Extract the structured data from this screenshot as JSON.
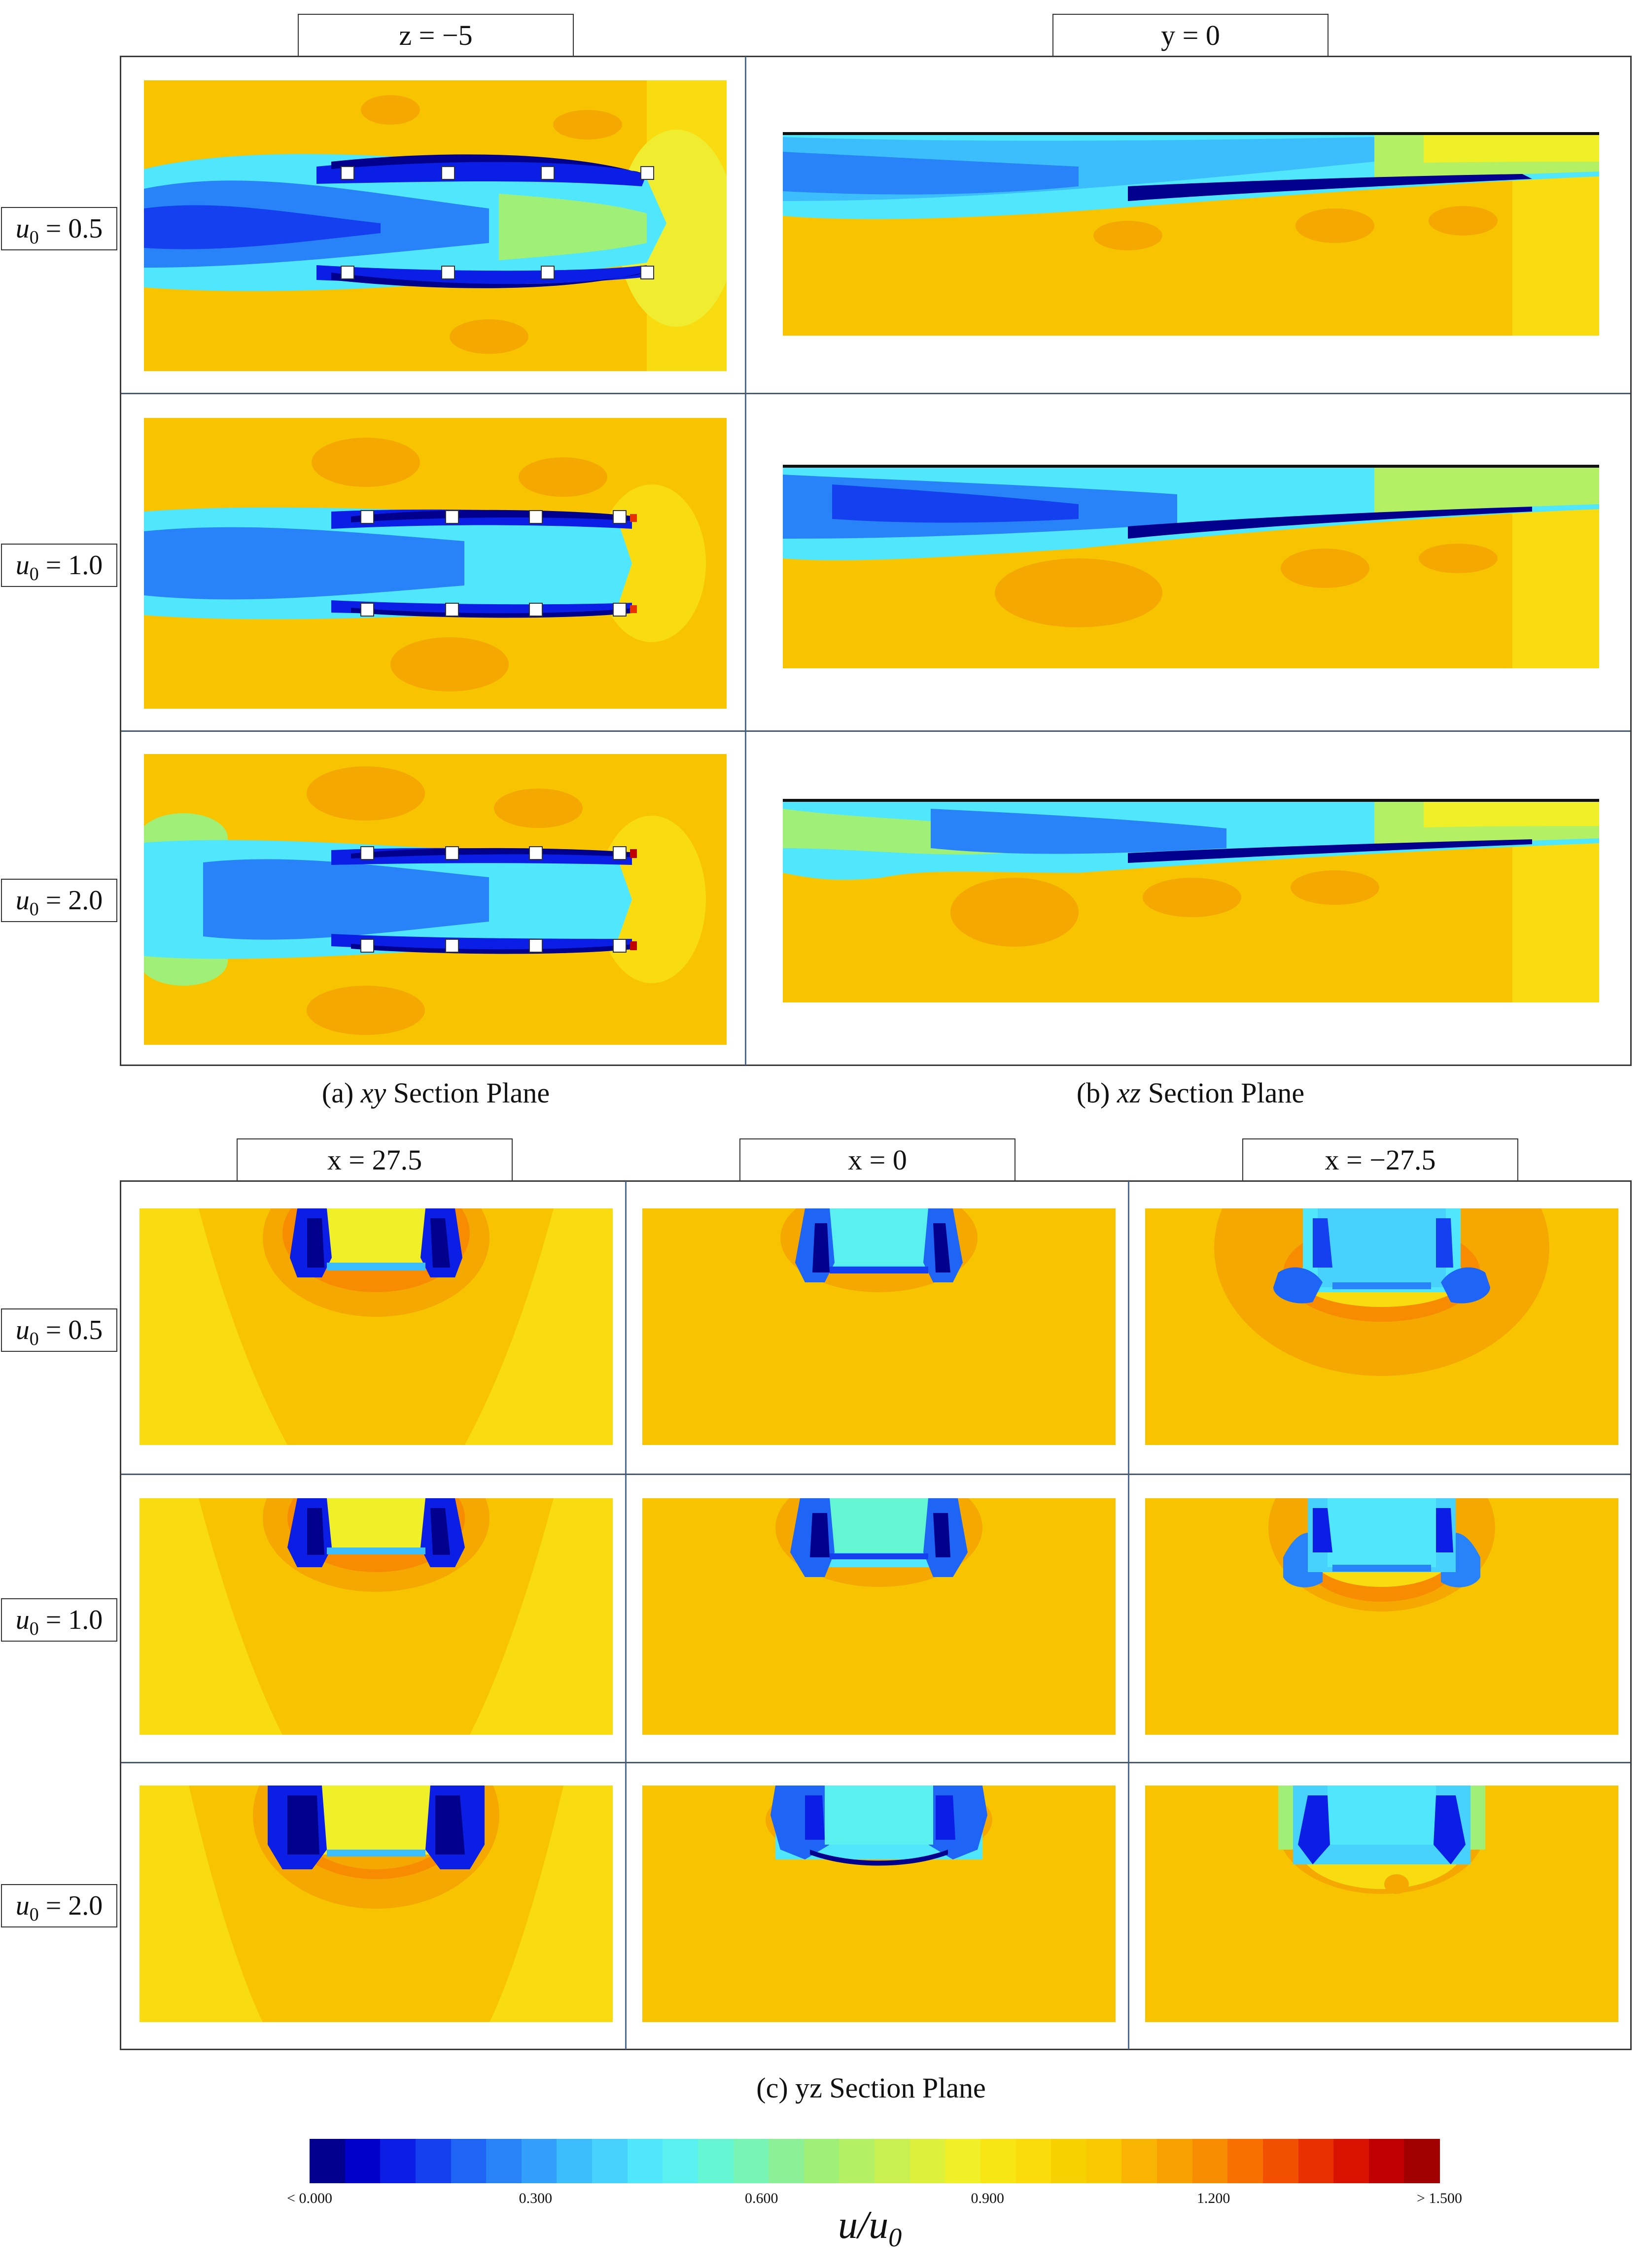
{
  "section_a": {
    "header": "z = −5",
    "caption_italic": "xy",
    "caption_prefix": "(a) ",
    "caption_suffix": " Section Plane"
  },
  "section_b": {
    "header": "y = 0",
    "caption_italic": "xz",
    "caption_prefix": "(b) ",
    "caption_suffix": " Section Plane"
  },
  "section_c": {
    "headers": [
      "x = 27.5",
      "x = 0",
      "x = −27.5"
    ],
    "caption": "(c) yz Section Plane"
  },
  "rows_top": [
    {
      "var": "u",
      "sub": "0",
      "value": " = 0.5"
    },
    {
      "var": "u",
      "sub": "0",
      "value": " = 1.0"
    },
    {
      "var": "u",
      "sub": "0",
      "value": " = 2.0"
    }
  ],
  "rows_bottom": [
    {
      "var": "u",
      "sub": "0",
      "value": " = 0.5"
    },
    {
      "var": "u",
      "sub": "0",
      "value": " = 1.0"
    },
    {
      "var": "u",
      "sub": "0",
      "value": " = 2.0"
    }
  ],
  "colorbar": {
    "ticks": [
      "< 0.000",
      "0.300",
      "0.600",
      "0.900",
      "1.200",
      "> 1.500"
    ],
    "title": "u/u",
    "title_sub": "0",
    "colors": [
      "#00008c",
      "#0000c8",
      "#0a1ee6",
      "#1440f0",
      "#1e64f5",
      "#2882f8",
      "#32a0fa",
      "#3cbefc",
      "#46d2fc",
      "#50e6fc",
      "#5af0f0",
      "#64f5d2",
      "#78f5b4",
      "#8cf096",
      "#a0f078",
      "#b4f064",
      "#c8f050",
      "#dcf03c",
      "#f0f028",
      "#f8e614",
      "#fadc0a",
      "#f8d200",
      "#f8c800",
      "#f8b400",
      "#f8a000",
      "#f88c00",
      "#f87000",
      "#f05000",
      "#e83000",
      "#d81400",
      "#c00000",
      "#a00000"
    ]
  }
}
